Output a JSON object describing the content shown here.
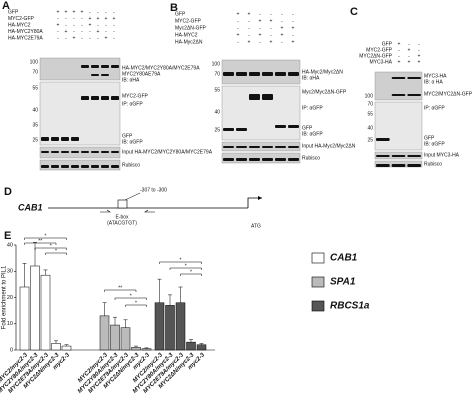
{
  "panels": {
    "A": {
      "label": "A",
      "rows": [
        {
          "name": "GFP",
          "signs": [
            "+",
            "+",
            "+",
            "+",
            "-",
            "-",
            "-",
            "-"
          ]
        },
        {
          "name": "MYC2-GFP",
          "signs": [
            "-",
            "-",
            "-",
            "-",
            "+",
            "+",
            "+",
            "+"
          ]
        },
        {
          "name": "HA-MYC2",
          "signs": [
            "+",
            "-",
            "-",
            "-",
            "+",
            "-",
            "-",
            "-"
          ]
        },
        {
          "name": "HA-MYC2Y80A",
          "signs": [
            "-",
            "+",
            "-",
            "-",
            "-",
            "+",
            "-",
            "-"
          ]
        },
        {
          "name": "HA-MYC2E79A",
          "signs": [
            "-",
            "-",
            "+",
            "-",
            "-",
            "-",
            "+",
            "-"
          ]
        }
      ],
      "mw": [
        "100",
        "70",
        "55",
        "40",
        "35",
        "25"
      ],
      "right": [
        "HA-MYC2/MYC2Y80A/MYC2E79A",
        "MYC2Y80AE79A",
        "IB: αHA",
        "MYC2-GFP",
        "IP: αGFP",
        "GFP",
        "IB: αGFP",
        "Input HA-MYC2/MYC2Y80A/MYC2E79A",
        "Rubisco"
      ]
    },
    "B": {
      "label": "B",
      "rows": [
        {
          "name": "GFP",
          "signs": [
            "+",
            "+",
            "-",
            "-",
            "-",
            "-"
          ]
        },
        {
          "name": "MYC2-GFP",
          "signs": [
            "-",
            "-",
            "+",
            "+",
            "-",
            "-"
          ]
        },
        {
          "name": "Myc2ΔN-GFP",
          "signs": [
            "-",
            "-",
            "-",
            "-",
            "+",
            "+"
          ]
        },
        {
          "name": "HA-MYC2",
          "signs": [
            "+",
            "-",
            "+",
            "-",
            "+",
            "-"
          ]
        },
        {
          "name": "HA-Myc2ΔN",
          "signs": [
            "-",
            "+",
            "-",
            "+",
            "-",
            "+"
          ]
        }
      ],
      "mw": [
        "100",
        "70",
        "55",
        "40",
        "25"
      ],
      "right": [
        "HA-Myc2/Myc2ΔN",
        "IB: αHA",
        "Myc2/Myc2ΔN-GFP",
        "IP: αGFP",
        "GFP",
        "IB: αGFP",
        "Input HA-Myc2/Myc2ΔN",
        "Rubisco"
      ]
    },
    "C": {
      "label": "C",
      "rows": [
        {
          "name": "GFP",
          "signs": [
            "+",
            "-",
            "-"
          ]
        },
        {
          "name": "MYC2-GFP",
          "signs": [
            "-",
            "+",
            "-"
          ]
        },
        {
          "name": "MYC2ΔN-GFP",
          "signs": [
            "-",
            "-",
            "+"
          ]
        },
        {
          "name": "MYC3-HA",
          "signs": [
            "+",
            "+",
            "+"
          ]
        }
      ],
      "mw": [
        "100",
        "70",
        "55",
        "40",
        "25"
      ],
      "right": [
        "MYC3-HA",
        "IB: α HA",
        "MYC2/MYC2ΔN-GFP",
        "IP: αGFP",
        "GFP",
        "IB: αGFP",
        "Input MYC3-HA",
        "Rubisco"
      ]
    },
    "D": {
      "label": "D",
      "gene": "CAB1",
      "region": "-307 to -300",
      "ebox": "E-box",
      "motif": "(ATACGTGT)",
      "atg": "ATG"
    }
  },
  "chart_data": {
    "type": "bar",
    "panel_label": "E",
    "y_label": "Fold enrichment to PIL1",
    "categories": [
      "MYC2/myc2-3",
      "MYC2Y80A/myc2-3",
      "MYC2E79A/myc2-3",
      "MYC2ΔN/myc2-3",
      "myc2-3"
    ],
    "series": [
      {
        "name": "CAB1",
        "color": "#ffffff",
        "values": [
          24,
          32,
          28.5,
          2.5,
          1.5
        ],
        "errors": [
          9,
          9,
          2,
          1,
          0.5
        ]
      },
      {
        "name": "SPA1",
        "color": "#bbbbbb",
        "values": [
          13,
          9.5,
          8.5,
          1,
          0.5
        ],
        "errors": [
          5,
          3,
          3,
          0.5,
          0.3
        ]
      },
      {
        "name": "RBCS1a",
        "color": "#555555",
        "values": [
          18,
          17,
          18,
          3,
          2
        ],
        "errors": [
          9,
          4,
          6,
          1,
          0.5
        ]
      }
    ],
    "ylim": [
      0,
      40
    ],
    "yticks": [
      0,
      10,
      20,
      30,
      40
    ],
    "significance": [
      [
        "*",
        "**",
        "*",
        "*"
      ],
      [
        "**",
        "*",
        "*"
      ],
      [
        "*",
        "*",
        "*"
      ]
    ]
  }
}
